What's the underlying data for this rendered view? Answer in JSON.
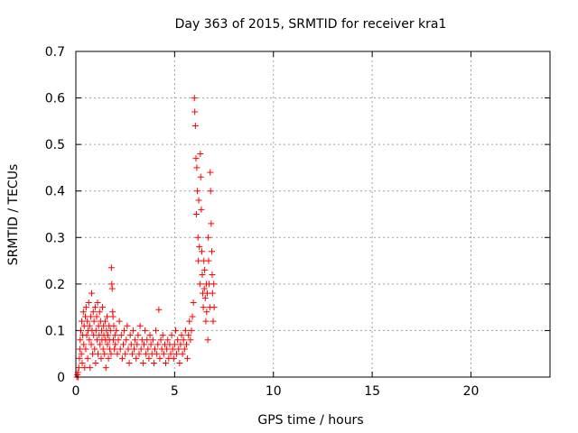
{
  "chart_data": {
    "type": "scatter",
    "title": "Day 363 of 2015, SRMTID for receiver kra1",
    "xlabel": "GPS time / hours",
    "ylabel": "SRMTID / TECUs",
    "xlim": [
      0,
      24
    ],
    "ylim": [
      0,
      0.7
    ],
    "xticks": [
      0,
      5,
      10,
      15,
      20
    ],
    "yticks": [
      0,
      0.1,
      0.2,
      0.3,
      0.4,
      0.5,
      0.6,
      0.7
    ],
    "grid": true,
    "marker": "+",
    "series": [
      {
        "color": "#ff0000",
        "points": [
          [
            0.05,
            0.0
          ],
          [
            0.08,
            0.005
          ],
          [
            0.1,
            0.01
          ],
          [
            0.12,
            0.0
          ],
          [
            0.15,
            0.02
          ],
          [
            0.18,
            0.04
          ],
          [
            0.2,
            0.06
          ],
          [
            0.22,
            0.08
          ],
          [
            0.25,
            0.1
          ],
          [
            0.28,
            0.05
          ],
          [
            0.3,
            0.12
          ],
          [
            0.32,
            0.03
          ],
          [
            0.35,
            0.09
          ],
          [
            0.38,
            0.14
          ],
          [
            0.4,
            0.07
          ],
          [
            0.42,
            0.11
          ],
          [
            0.45,
            0.02
          ],
          [
            0.48,
            0.13
          ],
          [
            0.5,
            0.06
          ],
          [
            0.52,
            0.15
          ],
          [
            0.55,
            0.09
          ],
          [
            0.58,
            0.12
          ],
          [
            0.6,
            0.04
          ],
          [
            0.62,
            0.1
          ],
          [
            0.65,
            0.16
          ],
          [
            0.68,
            0.08
          ],
          [
            0.7,
            0.11
          ],
          [
            0.72,
            0.02
          ],
          [
            0.75,
            0.13
          ],
          [
            0.78,
            0.07
          ],
          [
            0.8,
            0.18
          ],
          [
            0.82,
            0.1
          ],
          [
            0.85,
            0.05
          ],
          [
            0.88,
            0.14
          ],
          [
            0.9,
            0.09
          ],
          [
            0.92,
            0.12
          ],
          [
            0.95,
            0.06
          ],
          [
            0.98,
            0.15
          ],
          [
            1.0,
            0.03
          ],
          [
            1.02,
            0.1
          ],
          [
            1.05,
            0.13
          ],
          [
            1.08,
            0.08
          ],
          [
            1.1,
            0.16
          ],
          [
            1.12,
            0.05
          ],
          [
            1.15,
            0.11
          ],
          [
            1.18,
            0.09
          ],
          [
            1.2,
            0.14
          ],
          [
            1.22,
            0.07
          ],
          [
            1.25,
            0.12
          ],
          [
            1.28,
            0.04
          ],
          [
            1.3,
            0.1
          ],
          [
            1.32,
            0.08
          ],
          [
            1.35,
            0.15
          ],
          [
            1.38,
            0.06
          ],
          [
            1.4,
            0.11
          ],
          [
            1.42,
            0.09
          ],
          [
            1.45,
            0.05
          ],
          [
            1.48,
            0.12
          ],
          [
            1.5,
            0.08
          ],
          [
            1.52,
            0.02
          ],
          [
            1.55,
            0.1
          ],
          [
            1.58,
            0.13
          ],
          [
            1.6,
            0.07
          ],
          [
            1.62,
            0.09
          ],
          [
            1.65,
            0.04
          ],
          [
            1.68,
            0.11
          ],
          [
            1.7,
            0.08
          ],
          [
            1.72,
            0.06
          ],
          [
            1.75,
            0.1
          ],
          [
            1.78,
            0.05
          ],
          [
            1.8,
            0.235
          ],
          [
            1.82,
            0.2
          ],
          [
            1.84,
            0.19
          ],
          [
            1.86,
            0.14
          ],
          [
            1.88,
            0.13
          ],
          [
            1.9,
            0.08
          ],
          [
            1.92,
            0.11
          ],
          [
            1.95,
            0.06
          ],
          [
            1.98,
            0.09
          ],
          [
            2.0,
            0.07
          ],
          [
            2.05,
            0.1
          ],
          [
            2.1,
            0.05
          ],
          [
            2.15,
            0.08
          ],
          [
            2.2,
            0.12
          ],
          [
            2.25,
            0.06
          ],
          [
            2.3,
            0.09
          ],
          [
            2.35,
            0.04
          ],
          [
            2.4,
            0.07
          ],
          [
            2.45,
            0.1
          ],
          [
            2.5,
            0.05
          ],
          [
            2.55,
            0.08
          ],
          [
            2.6,
            0.11
          ],
          [
            2.65,
            0.06
          ],
          [
            2.7,
            0.03
          ],
          [
            2.75,
            0.09
          ],
          [
            2.8,
            0.07
          ],
          [
            2.85,
            0.05
          ],
          [
            2.9,
            0.1
          ],
          [
            2.95,
            0.06
          ],
          [
            3.0,
            0.08
          ],
          [
            3.05,
            0.04
          ],
          [
            3.1,
            0.07
          ],
          [
            3.15,
            0.09
          ],
          [
            3.2,
            0.05
          ],
          [
            3.25,
            0.11
          ],
          [
            3.3,
            0.06
          ],
          [
            3.35,
            0.08
          ],
          [
            3.4,
            0.03
          ],
          [
            3.45,
            0.07
          ],
          [
            3.5,
            0.1
          ],
          [
            3.55,
            0.05
          ],
          [
            3.6,
            0.08
          ],
          [
            3.65,
            0.06
          ],
          [
            3.7,
            0.04
          ],
          [
            3.75,
            0.09
          ],
          [
            3.8,
            0.07
          ],
          [
            3.85,
            0.05
          ],
          [
            3.9,
            0.08
          ],
          [
            3.95,
            0.03
          ],
          [
            4.0,
            0.06
          ],
          [
            4.05,
            0.1
          ],
          [
            4.1,
            0.05
          ],
          [
            4.15,
            0.07
          ],
          [
            4.2,
            0.145
          ],
          [
            4.25,
            0.04
          ],
          [
            4.3,
            0.08
          ],
          [
            4.35,
            0.06
          ],
          [
            4.4,
            0.09
          ],
          [
            4.45,
            0.05
          ],
          [
            4.5,
            0.07
          ],
          [
            4.55,
            0.03
          ],
          [
            4.6,
            0.06
          ],
          [
            4.65,
            0.08
          ],
          [
            4.7,
            0.04
          ],
          [
            4.75,
            0.07
          ],
          [
            4.8,
            0.05
          ],
          [
            4.85,
            0.09
          ],
          [
            4.9,
            0.06
          ],
          [
            4.95,
            0.04
          ],
          [
            5.0,
            0.07
          ],
          [
            5.05,
            0.1
          ],
          [
            5.1,
            0.05
          ],
          [
            5.15,
            0.08
          ],
          [
            5.2,
            0.06
          ],
          [
            5.25,
            0.03
          ],
          [
            5.3,
            0.07
          ],
          [
            5.35,
            0.09
          ],
          [
            5.4,
            0.05
          ],
          [
            5.45,
            0.08
          ],
          [
            5.5,
            0.06
          ],
          [
            5.55,
            0.1
          ],
          [
            5.6,
            0.07
          ],
          [
            5.65,
            0.04
          ],
          [
            5.7,
            0.09
          ],
          [
            5.75,
            0.12
          ],
          [
            5.8,
            0.08
          ],
          [
            5.85,
            0.1
          ],
          [
            5.9,
            0.13
          ],
          [
            5.95,
            0.16
          ],
          [
            6.0,
            0.6
          ],
          [
            6.02,
            0.57
          ],
          [
            6.05,
            0.54
          ],
          [
            6.08,
            0.47
          ],
          [
            6.1,
            0.35
          ],
          [
            6.12,
            0.45
          ],
          [
            6.15,
            0.4
          ],
          [
            6.18,
            0.3
          ],
          [
            6.2,
            0.25
          ],
          [
            6.22,
            0.38
          ],
          [
            6.25,
            0.28
          ],
          [
            6.28,
            0.2
          ],
          [
            6.3,
            0.48
          ],
          [
            6.32,
            0.43
          ],
          [
            6.35,
            0.36
          ],
          [
            6.38,
            0.27
          ],
          [
            6.4,
            0.22
          ],
          [
            6.42,
            0.18
          ],
          [
            6.45,
            0.15
          ],
          [
            6.48,
            0.25
          ],
          [
            6.5,
            0.19
          ],
          [
            6.52,
            0.23
          ],
          [
            6.55,
            0.17
          ],
          [
            6.58,
            0.12
          ],
          [
            6.6,
            0.2
          ],
          [
            6.62,
            0.14
          ],
          [
            6.65,
            0.18
          ],
          [
            6.68,
            0.08
          ],
          [
            6.7,
            0.3
          ],
          [
            6.72,
            0.25
          ],
          [
            6.75,
            0.2
          ],
          [
            6.78,
            0.15
          ],
          [
            6.8,
            0.44
          ],
          [
            6.82,
            0.4
          ],
          [
            6.85,
            0.33
          ],
          [
            6.88,
            0.27
          ],
          [
            6.9,
            0.22
          ],
          [
            6.92,
            0.18
          ],
          [
            6.95,
            0.12
          ],
          [
            6.98,
            0.2
          ],
          [
            7.0,
            0.15
          ]
        ]
      }
    ]
  }
}
